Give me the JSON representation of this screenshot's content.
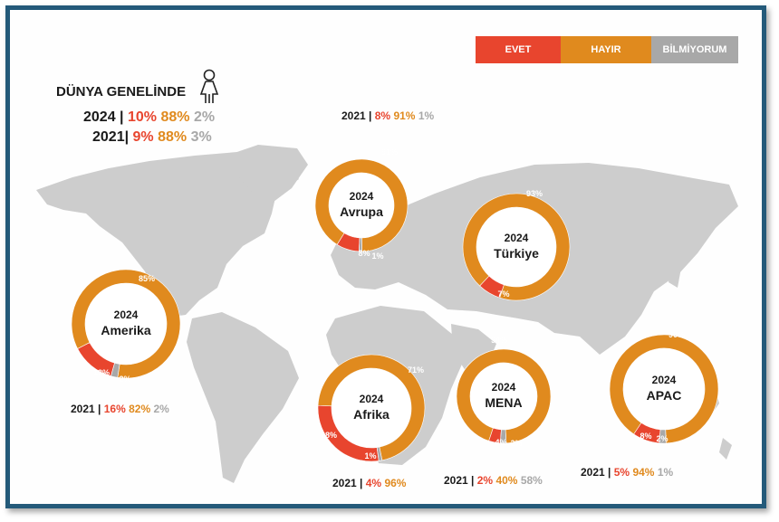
{
  "legend": {
    "evet": "EVET",
    "hayir": "HAYIR",
    "bilmiyorum": "BİLMİYORUM"
  },
  "colors": {
    "evet": "#e8452e",
    "hayir": "#e08a1e",
    "bilmiyorum": "#a8a8a8",
    "map": "#cdcdcd",
    "frame": "#245a7a"
  },
  "global": {
    "title": "DÜNYA GENELİNDE",
    "icon": "female-person-icon",
    "row2024": {
      "year": "2024",
      "sep": "|",
      "evet": "10%",
      "hayir": "88%",
      "bilmiyorum": "2%"
    },
    "row2021": {
      "year": "2021",
      "sep": "|",
      "evet": "9%",
      "hayir": "88%",
      "bilmiyorum": "3%"
    }
  },
  "chart_data": [
    {
      "type": "pie",
      "variant": "donut",
      "year": "2024",
      "region": "Avrupa",
      "categories": [
        "EVET",
        "HAYIR",
        "BİLMİYORUM"
      ],
      "values": [
        8,
        91,
        1
      ],
      "labels": [
        "8%",
        "91%",
        "1%"
      ],
      "prev": {
        "year": "2021",
        "sep": "|",
        "evet": "8%",
        "hayir": "91%",
        "bilmiyorum": "1%"
      }
    },
    {
      "type": "pie",
      "variant": "donut",
      "year": "2024",
      "region": "Türkiye",
      "categories": [
        "EVET",
        "HAYIR"
      ],
      "values": [
        7,
        93
      ],
      "labels": [
        "7%",
        "93%"
      ]
    },
    {
      "type": "pie",
      "variant": "donut",
      "year": "2024",
      "region": "Amerika",
      "categories": [
        "EVET",
        "HAYIR",
        "BİLMİYORUM"
      ],
      "values": [
        13,
        85,
        2
      ],
      "labels": [
        "13%",
        "85%",
        "2%"
      ],
      "prev": {
        "year": "2021",
        "sep": "|",
        "evet": "16%",
        "hayir": "82%",
        "bilmiyorum": "2%"
      }
    },
    {
      "type": "pie",
      "variant": "donut",
      "year": "2024",
      "region": "Afrika",
      "categories": [
        "EVET",
        "HAYIR",
        "BİLMİYORUM"
      ],
      "values": [
        28,
        71,
        1
      ],
      "labels": [
        "28%",
        "71%",
        "1%"
      ],
      "prev": {
        "year": "2021",
        "sep": "|",
        "evet": "4%",
        "hayir": "96%"
      }
    },
    {
      "type": "pie",
      "variant": "donut",
      "year": "2024",
      "region": "MENA",
      "categories": [
        "EVET",
        "HAYIR",
        "BİLMİYORUM"
      ],
      "values": [
        4,
        94,
        2
      ],
      "labels": [
        "4%",
        "94%",
        "2%"
      ],
      "prev": {
        "year": "2021",
        "sep": "|",
        "evet": "2%",
        "hayir": "40%",
        "bilmiyorum": "58%"
      }
    },
    {
      "type": "pie",
      "variant": "donut",
      "year": "2024",
      "region": "APAC",
      "categories": [
        "EVET",
        "HAYIR",
        "BİLMİYORUM"
      ],
      "values": [
        8,
        90,
        2
      ],
      "labels": [
        "8%",
        "90%",
        "2%"
      ],
      "prev": {
        "year": "2021",
        "sep": "|",
        "evet": "5%",
        "hayir": "94%",
        "bilmiyorum": "1%"
      }
    }
  ]
}
